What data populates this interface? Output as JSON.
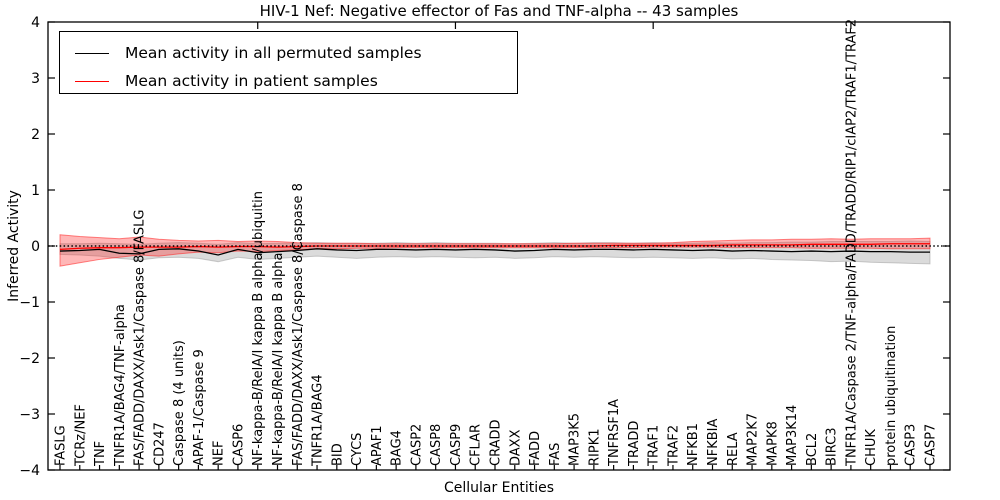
{
  "title": "HIV-1 Nef: Negative effector of Fas and TNF-alpha -- 43 samples",
  "legend": {
    "items": [
      {
        "label": "Mean activity in all permuted samples",
        "color": "#000000"
      },
      {
        "label": "Mean activity in patient samples",
        "color": "#ff0000"
      }
    ]
  },
  "colors": {
    "frame": "#000000",
    "permuted_line": "#000000",
    "patient_line": "#ff0000",
    "permuted_band": "#999999",
    "patient_band": "#ff2020",
    "zero_line": "#000000"
  },
  "chart_data": {
    "type": "line",
    "title": "HIV-1 Nef: Negative effector of Fas and TNF-alpha -- 43 samples",
    "xlabel": "Cellular Entities",
    "ylabel": "Inferred Activity",
    "ylim": [
      -4,
      4
    ],
    "yticks": [
      4,
      3,
      2,
      1,
      0,
      -1,
      -2,
      -3,
      -4
    ],
    "top_tick_indices": [
      10,
      20,
      30,
      40
    ],
    "grid": false,
    "zero_line": true,
    "legend_position": "upper left",
    "categories": [
      "FASLG",
      "TCRz/NEF",
      "TNF",
      "TNFR1A/BAG4/TNF-alpha",
      "FAS/FADD/DAXX/Ask1/Caspase 8/FASLG",
      "CD247",
      "Caspase 8 (4 units)",
      "APAF-1/Caspase 9",
      "NEF",
      "CASP6",
      "NF-kappa-B/RelA/I kappa B alpha/ubiquitin",
      "NF-kappa-B/RelA/I kappa B alpha",
      "FAS/FADD/DAXX/Ask1/Caspase 8/Caspase 8",
      "TNFR1A/BAG4",
      "BID",
      "CYCS",
      "APAF1",
      "BAG4",
      "CASP2",
      "CASP8",
      "CASP9",
      "CFLAR",
      "CRADD",
      "DAXX",
      "FADD",
      "FAS",
      "MAP3K5",
      "RIPK1",
      "TNFRSF1A",
      "TRADD",
      "TRAF1",
      "TRAF2",
      "NFKB1",
      "NFKBIA",
      "RELA",
      "MAP2K7",
      "MAPK8",
      "MAP3K14",
      "BCL2",
      "BIRC3",
      "TNFR1A/Caspase 2/TNF-alpha/FADD/TRADD/RIP1/cIAP2/TRAF1/TRAF2",
      "CHUK",
      "protein ubiquitination",
      "CASP3",
      "CASP7"
    ],
    "series": [
      {
        "name": "Mean activity in all permuted samples",
        "color": "#000000",
        "values": [
          -0.09,
          -0.08,
          -0.06,
          -0.13,
          -0.14,
          -0.06,
          -0.05,
          -0.09,
          -0.16,
          -0.06,
          -0.12,
          -0.1,
          -0.08,
          -0.05,
          -0.07,
          -0.08,
          -0.06,
          -0.06,
          -0.07,
          -0.06,
          -0.07,
          -0.06,
          -0.07,
          -0.09,
          -0.08,
          -0.06,
          -0.07,
          -0.06,
          -0.06,
          -0.07,
          -0.06,
          -0.07,
          -0.08,
          -0.07,
          -0.09,
          -0.08,
          -0.09,
          -0.1,
          -0.09,
          -0.1,
          -0.09,
          -0.1,
          -0.1,
          -0.11,
          -0.11
        ]
      },
      {
        "name": "Mean activity in patient samples",
        "color": "#ff0000",
        "values": [
          -0.06,
          -0.04,
          -0.03,
          -0.03,
          -0.02,
          -0.02,
          -0.02,
          -0.01,
          -0.02,
          -0.01,
          -0.01,
          -0.02,
          -0.01,
          0,
          0,
          0,
          0,
          0,
          0,
          0,
          0,
          0,
          0,
          0,
          0,
          0,
          0,
          0,
          0.01,
          0.01,
          0.01,
          0.01,
          0.01,
          0.01,
          0.02,
          0.02,
          0.02,
          0.02,
          0.03,
          0.03,
          0.03,
          0.03,
          0.04,
          0.04,
          0.04
        ]
      }
    ],
    "bands": [
      {
        "name": "permuted-range",
        "color": "#999999",
        "fill_opacity": 0.35,
        "edge_opacity": 0.5,
        "lower": [
          -0.15,
          -0.16,
          -0.18,
          -0.22,
          -0.25,
          -0.21,
          -0.2,
          -0.22,
          -0.28,
          -0.2,
          -0.24,
          -0.22,
          -0.2,
          -0.18,
          -0.2,
          -0.22,
          -0.2,
          -0.19,
          -0.2,
          -0.19,
          -0.2,
          -0.21,
          -0.2,
          -0.22,
          -0.21,
          -0.19,
          -0.2,
          -0.19,
          -0.2,
          -0.21,
          -0.2,
          -0.21,
          -0.22,
          -0.21,
          -0.23,
          -0.22,
          -0.24,
          -0.25,
          -0.26,
          -0.28,
          -0.27,
          -0.29,
          -0.3,
          -0.31,
          -0.32
        ],
        "upper": [
          0.04,
          0.04,
          0.05,
          0.04,
          0.03,
          0.05,
          0.06,
          0.05,
          0.03,
          0.06,
          0.04,
          0.05,
          0.05,
          0.06,
          0.05,
          0.05,
          0.05,
          0.06,
          0.05,
          0.06,
          0.05,
          0.05,
          0.05,
          0.04,
          0.05,
          0.06,
          0.05,
          0.06,
          0.06,
          0.05,
          0.06,
          0.05,
          0.05,
          0.06,
          0.05,
          0.06,
          0.06,
          0.07,
          0.07,
          0.08,
          0.08,
          0.08,
          0.08,
          0.09,
          0.08
        ]
      },
      {
        "name": "patient-range",
        "color": "#ff2020",
        "fill_opacity": 0.32,
        "edge_opacity": 0.55,
        "lower": [
          -0.36,
          -0.3,
          -0.24,
          -0.2,
          -0.16,
          -0.18,
          -0.14,
          -0.11,
          -0.12,
          -0.09,
          -0.1,
          -0.08,
          -0.07,
          -0.05,
          -0.05,
          -0.04,
          -0.04,
          -0.03,
          -0.03,
          -0.03,
          -0.03,
          -0.03,
          -0.03,
          -0.03,
          -0.03,
          -0.03,
          -0.03,
          -0.03,
          -0.03,
          -0.03,
          -0.02,
          -0.02,
          -0.02,
          -0.02,
          -0.03,
          -0.03,
          -0.03,
          -0.03,
          -0.04,
          -0.04,
          -0.04,
          -0.04,
          -0.05,
          -0.05,
          -0.05
        ],
        "upper": [
          0.2,
          0.17,
          0.15,
          0.13,
          0.16,
          0.12,
          0.1,
          0.09,
          0.1,
          0.08,
          0.09,
          0.08,
          0.06,
          0.05,
          0.05,
          0.05,
          0.04,
          0.04,
          0.04,
          0.04,
          0.04,
          0.04,
          0.04,
          0.04,
          0.04,
          0.04,
          0.05,
          0.05,
          0.05,
          0.05,
          0.05,
          0.06,
          0.08,
          0.09,
          0.1,
          0.11,
          0.11,
          0.12,
          0.12,
          0.13,
          0.12,
          0.13,
          0.13,
          0.13,
          0.14
        ]
      }
    ]
  }
}
